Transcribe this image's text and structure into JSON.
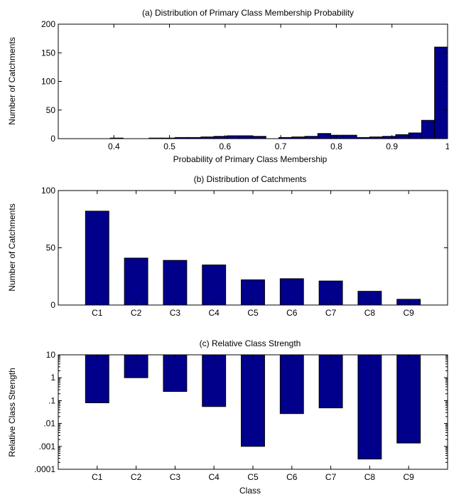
{
  "chart_data": [
    {
      "id": "a",
      "type": "bar",
      "title": "(a) Distribution of Primary Class Membership Probability",
      "xlabel": "Probability of Primary Class Membership",
      "ylabel": "Number of Catchments",
      "xlim": [
        0.3,
        1.0
      ],
      "ylim": [
        0,
        200
      ],
      "xticks": [
        0.4,
        0.5,
        0.6,
        0.7,
        0.8,
        0.9,
        1.0
      ],
      "xtick_labels": [
        "0.4",
        "0.5",
        "0.6",
        "0.7",
        "0.8",
        "0.9",
        "1"
      ],
      "yticks": [
        0,
        50,
        100,
        150,
        200
      ],
      "ytick_labels": [
        "0",
        "50",
        "100",
        "150",
        "200"
      ],
      "bin_width": 0.02333,
      "bin_centers": [
        0.3117,
        0.335,
        0.3583,
        0.3817,
        0.405,
        0.4283,
        0.4517,
        0.475,
        0.4983,
        0.5217,
        0.545,
        0.5683,
        0.5917,
        0.615,
        0.6383,
        0.6617,
        0.685,
        0.7083,
        0.7317,
        0.755,
        0.7783,
        0.8017,
        0.825,
        0.8483,
        0.8717,
        0.895,
        0.9183,
        0.9417,
        0.965,
        0.9883
      ],
      "values": [
        0,
        0,
        0,
        0,
        1,
        0,
        0,
        1,
        1,
        2,
        2,
        3,
        4,
        5,
        5,
        4,
        0,
        2,
        3,
        4,
        9,
        6,
        6,
        2,
        3,
        4,
        7,
        10,
        32,
        160
      ]
    },
    {
      "id": "b",
      "type": "bar",
      "title": "(b) Distribution of Catchments",
      "xlabel": "",
      "ylabel": "Number of Catchments",
      "categories": [
        "C1",
        "C2",
        "C3",
        "C4",
        "C5",
        "C6",
        "C7",
        "C8",
        "C9"
      ],
      "values": [
        82,
        41,
        39,
        35,
        22,
        23,
        21,
        12,
        5
      ],
      "ylim": [
        0,
        100
      ],
      "yticks": [
        0,
        50,
        100
      ],
      "ytick_labels": [
        "0",
        "50",
        "100"
      ]
    },
    {
      "id": "c",
      "type": "bar",
      "title": "(c) Relative Class Strength",
      "xlabel": "Class",
      "ylabel": "Relative Class Strength",
      "categories": [
        "C1",
        "C2",
        "C3",
        "C4",
        "C5",
        "C6",
        "C7",
        "C8",
        "C9"
      ],
      "values": [
        0.08,
        1.0,
        0.25,
        0.055,
        0.001,
        0.027,
        0.048,
        0.00028,
        0.0014
      ],
      "yscale": "log",
      "bar_top": 10,
      "ylim": [
        0.0001,
        10
      ],
      "yticks": [
        0.0001,
        0.001,
        0.01,
        0.1,
        1,
        10
      ],
      "ytick_labels": [
        ".0001",
        ".001",
        ".01",
        ".1",
        "1",
        "10"
      ]
    }
  ]
}
